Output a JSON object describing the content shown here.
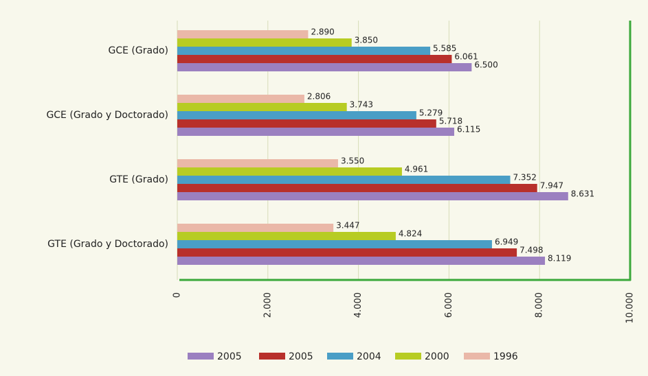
{
  "chart_data": {
    "type": "barh",
    "categories": [
      "GCE (Grado)",
      "GCE (Grado y Doctorado)",
      "GTE (Grado)",
      "GTE (Grado y Doctorado)"
    ],
    "series": [
      {
        "name": "2005",
        "color": "#9b80c0",
        "values": [
          6500,
          6115,
          8631,
          8119
        ],
        "value_labels": [
          "6.500",
          "6.115",
          "8.631",
          "8.119"
        ]
      },
      {
        "name": "2005",
        "color": "#b8302b",
        "values": [
          6061,
          5718,
          7947,
          7498
        ],
        "value_labels": [
          "6.061",
          "5.718",
          "7.947",
          "7.498"
        ]
      },
      {
        "name": "2004",
        "color": "#4a9ec6",
        "values": [
          5585,
          5279,
          7352,
          6949
        ],
        "value_labels": [
          "5.585",
          "5.279",
          "7.352",
          "6.949"
        ]
      },
      {
        "name": "2000",
        "color": "#b7cc23",
        "values": [
          3850,
          3743,
          4961,
          4824
        ],
        "value_labels": [
          "3.850",
          "3.743",
          "4.961",
          "4.824"
        ]
      },
      {
        "name": "1996",
        "color": "#eab8a8",
        "values": [
          2890,
          2806,
          3550,
          3447
        ],
        "value_labels": [
          "2.890",
          "2.806",
          "3.550",
          "3.447"
        ]
      }
    ],
    "xlim": [
      0,
      10000
    ],
    "xticks": [
      0,
      {
        "value": 2000,
        "label": "2.000"
      },
      {
        "value": 4000,
        "label": "4.000"
      },
      {
        "value": 6000,
        "label": "6.000"
      },
      {
        "value": 8000,
        "label": "8.000"
      },
      {
        "value": 10000,
        "label": "10.000"
      }
    ],
    "grid": true,
    "legend": "bottom"
  }
}
